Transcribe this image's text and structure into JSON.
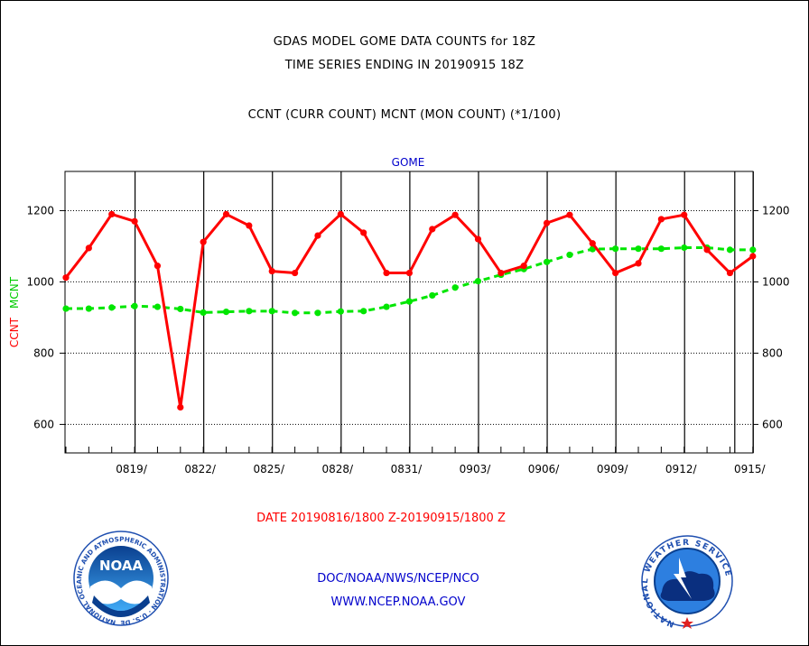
{
  "header": {
    "title_line1": "GDAS MODEL GOME DATA COUNTS for 18Z",
    "title_line2": "TIME SERIES ENDING IN 20190915 18Z",
    "subtitle": "CCNT (CURR COUNT) MCNT (MON COUNT) (*1/100)"
  },
  "chart_data": {
    "type": "line",
    "title": "GOME",
    "xlabel": "DATE 20190816/1800 Z-20190915/1800 Z",
    "ylabel_left_1": "CCNT",
    "ylabel_left_2": "MCNT",
    "ylim": [
      520,
      1310
    ],
    "x_start": "20190816",
    "yticks": [
      600,
      800,
      1000,
      1200
    ],
    "xtick_labels": [
      "0819/",
      "0822/",
      "0825/",
      "0828/",
      "0831/",
      "0903/",
      "0906/",
      "0909/",
      "0912/",
      "0915/"
    ],
    "grid": true,
    "series": [
      {
        "name": "CCNT",
        "color": "#ff0000",
        "values": [
          1012,
          1095,
          1190,
          1170,
          1045,
          648,
          1112,
          1190,
          1158,
          1030,
          1025,
          1130,
          1190,
          1138,
          1025,
          1025,
          1148,
          1188,
          1120,
          1025,
          1045,
          1165,
          1188,
          1108,
          1025,
          1052,
          1176,
          1188,
          1090,
          1025,
          1072
        ]
      },
      {
        "name": "MCNT",
        "color": "#00e600",
        "values": [
          925,
          925,
          928,
          932,
          930,
          924,
          914,
          916,
          918,
          918,
          913,
          913,
          917,
          918,
          930,
          945,
          962,
          984,
          1002,
          1020,
          1036,
          1056,
          1076,
          1092,
          1093,
          1093,
          1093,
          1096,
          1096,
          1090,
          1090
        ]
      }
    ]
  },
  "footer": {
    "agency_line": "DOC/NOAA/NWS/NCEP/NCO",
    "website": "WWW.NCEP.NOAA.GOV",
    "noaa_logo_text": "NOAA",
    "noaa_ring_text": "NATIONAL OCEANIC AND ATMOSPHERIC ADMINISTRATION · U.S. DEPARTMENT OF COMMERCE ·",
    "nws_ring_text": "NATIONAL WEATHER SERVICE"
  }
}
